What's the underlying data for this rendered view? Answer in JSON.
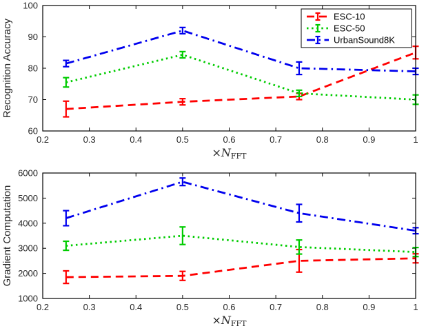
{
  "figure": {
    "background": "#ffffff",
    "axis_color": "#000000",
    "tick_label_color": "#262626"
  },
  "chart_data": [
    {
      "name": "recognition-accuracy",
      "type": "line",
      "title": "",
      "xlabel": "×N_FFT",
      "ylabel": "Recognition Accuracy",
      "xlim": [
        0.2,
        1
      ],
      "ylim": [
        60,
        100
      ],
      "xticks": [
        0.2,
        0.3,
        0.4,
        0.5,
        0.6,
        0.7,
        0.8,
        0.9,
        1
      ],
      "xtick_labels": [
        "0.2",
        "0.3",
        "0.4",
        "0.5",
        "0.6",
        "0.7",
        "0.8",
        "0.9",
        "1"
      ],
      "yticks": [
        60,
        70,
        80,
        90,
        100
      ],
      "x": [
        0.25,
        0.5,
        0.75,
        1
      ],
      "grid": false,
      "legend": {
        "visible": true,
        "position": "top-right"
      },
      "series": [
        {
          "name": "ESC-10",
          "color": "#ff0000",
          "dash": "dashed",
          "values": [
            67,
            69.3,
            71,
            85
          ],
          "errors": [
            2.5,
            1,
            1,
            2
          ]
        },
        {
          "name": "ESC-50",
          "color": "#00cc00",
          "dash": "dotted",
          "values": [
            75.5,
            84.3,
            72,
            70
          ],
          "errors": [
            1.5,
            1,
            1,
            1.5
          ]
        },
        {
          "name": "UrbanSound8K",
          "color": "#0000ee",
          "dash": "dashdot",
          "values": [
            81.5,
            92,
            80,
            79
          ],
          "errors": [
            1,
            1,
            2,
            1
          ]
        }
      ]
    },
    {
      "name": "gradient-computation",
      "type": "line",
      "title": "",
      "xlabel": "×N_FFT",
      "ylabel": "Gradient Computation",
      "xlim": [
        0.2,
        1
      ],
      "ylim": [
        1000,
        6000
      ],
      "xticks": [
        0.2,
        0.3,
        0.4,
        0.5,
        0.6,
        0.7,
        0.8,
        0.9,
        1
      ],
      "xtick_labels": [
        "0.2",
        "0.3",
        "0.4",
        "0.5",
        "0.6",
        "0.7",
        "0.8",
        "0.9",
        "1"
      ],
      "yticks": [
        1000,
        2000,
        3000,
        4000,
        5000,
        6000
      ],
      "x": [
        0.25,
        0.5,
        0.75,
        1
      ],
      "grid": false,
      "legend": {
        "visible": false,
        "position": "top-right"
      },
      "series": [
        {
          "name": "ESC-10",
          "color": "#ff0000",
          "dash": "dashed",
          "values": [
            1850,
            1900,
            2500,
            2600
          ],
          "errors": [
            250,
            180,
            450,
            180
          ]
        },
        {
          "name": "ESC-50",
          "color": "#00cc00",
          "dash": "dotted",
          "values": [
            3100,
            3500,
            3050,
            2850
          ],
          "errors": [
            180,
            350,
            280,
            180
          ]
        },
        {
          "name": "UrbanSound8K",
          "color": "#0000ee",
          "dash": "dashdot",
          "values": [
            4200,
            5650,
            4400,
            3700
          ],
          "errors": [
            300,
            150,
            350,
            120
          ]
        }
      ]
    }
  ]
}
